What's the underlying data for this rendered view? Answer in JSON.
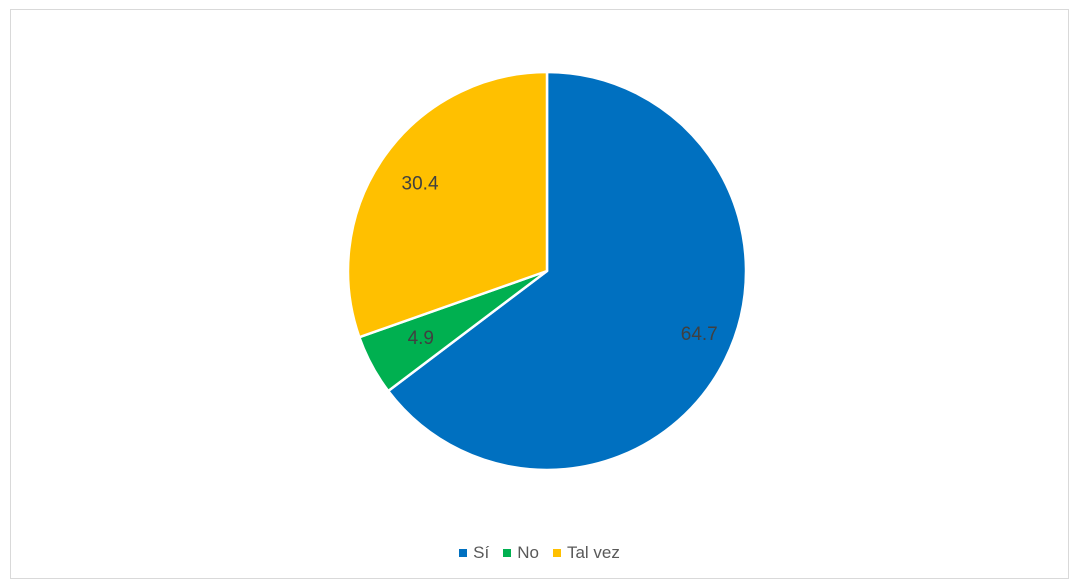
{
  "chart_data": {
    "type": "pie",
    "categories": [
      "Sí",
      "No",
      "Tal vez"
    ],
    "values": [
      64.7,
      4.9,
      30.4
    ],
    "data_labels": [
      "64.7",
      "4.9",
      "30.4"
    ],
    "colors": [
      "#0070c0",
      "#00b050",
      "#ffc000"
    ],
    "start_angle_deg": 0,
    "direction": "clockwise",
    "title": "",
    "legend_position": "bottom"
  }
}
